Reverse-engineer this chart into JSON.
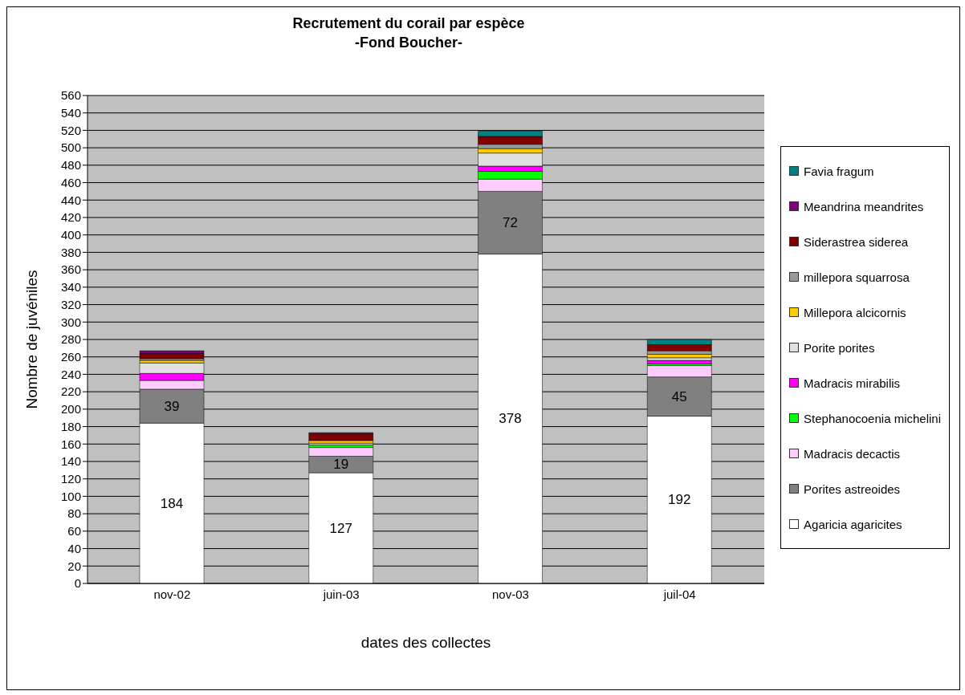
{
  "chart_data": {
    "type": "bar",
    "title": "Recrutement du corail par espèce",
    "subtitle": "-Fond Boucher-",
    "xlabel": "dates des collectes",
    "ylabel": "Nombre de juvéniles",
    "categories": [
      "nov-02",
      "juin-03",
      "nov-03",
      "juil-04"
    ],
    "stacked": true,
    "ylim": [
      0,
      560
    ],
    "yticks": [
      0,
      20,
      40,
      60,
      80,
      100,
      120,
      140,
      160,
      180,
      200,
      220,
      240,
      260,
      280,
      300,
      320,
      340,
      360,
      380,
      400,
      420,
      440,
      460,
      480,
      500,
      520,
      540,
      560
    ],
    "grid": "y",
    "legend": "right",
    "series": [
      {
        "name": "Agaricia agaricites",
        "color": "#ffffff",
        "values": [
          184,
          127,
          378,
          192
        ],
        "value_labels": [
          "184",
          "127",
          "378",
          "192"
        ]
      },
      {
        "name": "Porites astreoides",
        "color": "#808080",
        "values": [
          39,
          19,
          72,
          45
        ],
        "value_labels": [
          "39",
          "19",
          "72",
          "45"
        ]
      },
      {
        "name": "Madracis decactis",
        "color": "#ffccff",
        "values": [
          10,
          10,
          14,
          13
        ]
      },
      {
        "name": "Stephanocoenia michelini",
        "color": "#00ff00",
        "values": [
          0,
          3,
          9,
          2
        ]
      },
      {
        "name": "Madracis mirabilis",
        "color": "#ff00ff",
        "values": [
          8,
          null,
          6,
          4
        ]
      },
      {
        "name": "Porite porites",
        "color": "#e0e0e0",
        "values": [
          12,
          2,
          15,
          3
        ]
      },
      {
        "name": "Millepora alcicornis",
        "color": "#ffcc00",
        "values": [
          3,
          3,
          5,
          4
        ]
      },
      {
        "name": "millepora squarrosa",
        "color": "#999999",
        "values": [
          2,
          0,
          5,
          4
        ]
      },
      {
        "name": "Siderastrea siderea",
        "color": "#800000",
        "values": [
          6,
          8,
          9,
          7
        ]
      },
      {
        "name": "Meandrina meandrites",
        "color": "#800080",
        "values": [
          3,
          1,
          0,
          0
        ]
      },
      {
        "name": "Favia fragum",
        "color": "#008080",
        "values": [
          0,
          0,
          6,
          6
        ]
      }
    ]
  }
}
